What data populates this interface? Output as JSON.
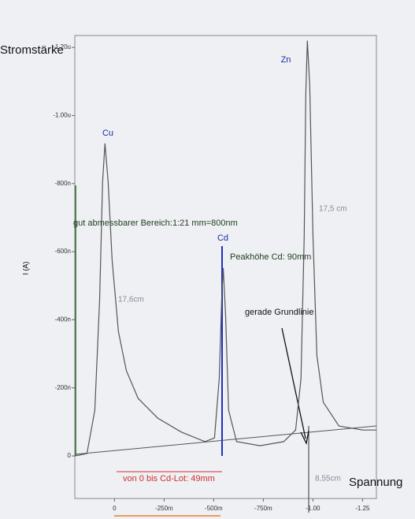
{
  "chart_data": {
    "type": "line",
    "y_label": "I (A)",
    "y_title": "Stromstärke",
    "x_title": "Spannung",
    "x": [
      0.198,
      0.139,
      0.099,
      0.075,
      0.06,
      0.048,
      0.032,
      0.012,
      -0.02,
      -0.06,
      -0.119,
      -0.218,
      -0.337,
      -0.456,
      -0.504,
      -0.528,
      -0.54,
      -0.548,
      -0.56,
      -0.575,
      -0.615,
      -0.734,
      -0.853,
      -0.913,
      -0.94,
      -0.956,
      -0.964,
      -0.972,
      -0.984,
      -1.0,
      -1.02,
      -1.052,
      -1.131,
      -1.25,
      -1.321
    ],
    "color": "#555555",
    "values": [
      0,
      -7,
      -134,
      -458,
      -806,
      -918,
      -806,
      -574,
      -365,
      -250,
      -169,
      -111,
      -70,
      -42,
      -53,
      -227,
      -459,
      -552,
      -412,
      -134,
      -42,
      -30,
      -42,
      -76,
      -227,
      -644,
      -1061,
      -1220,
      -1089,
      -649,
      -295,
      -158,
      -88,
      -76,
      -76
    ],
    "xlim": [
      0.2,
      -1.32
    ],
    "ylim": [
      125,
      -1235
    ],
    "xticks": [
      0,
      {
        "value": -0.25,
        "label": "-250m"
      },
      {
        "value": -0.5,
        "label": "-500m"
      },
      {
        "value": -0.75,
        "label": "-750m"
      },
      {
        "value": -1,
        "label": "-1.00"
      },
      {
        "value": -1.25,
        "label": "-1.25"
      }
    ],
    "yticks": [
      0,
      {
        "value": -200,
        "label": "-200n"
      },
      {
        "value": -400,
        "label": "-400n"
      },
      {
        "value": -600,
        "label": "-600n"
      },
      {
        "value": -800,
        "label": "-800n"
      },
      {
        "value": -1000,
        "label": "-1.00u"
      },
      {
        "value": -1200,
        "label": "-1.20u"
      }
    ],
    "annotations": [
      {
        "text": "Cu",
        "color": "#1a2aa8"
      },
      {
        "text": "Cd",
        "color": "#1a2aa8"
      },
      {
        "text": "Zn",
        "color": "#1a2aa8"
      },
      {
        "text": "gut abmessbarer Bereich:1:21 mm=800nm",
        "color": "#1f3d1f"
      },
      {
        "text": "Peakhöhe Cd: 90mm",
        "color": "#1f3d1f"
      },
      {
        "text": "gerade Grundlinie",
        "color": "#111111"
      },
      {
        "text": "von 0 bis Cd-Lot: 49mm",
        "color": "#d03030"
      },
      {
        "text": "17,5 cm",
        "color": "#8a8a9a"
      },
      {
        "text": "17,6cm",
        "color": "#8a8a9a"
      },
      {
        "text": "8,55cm",
        "color": "#8a8a9a"
      }
    ]
  }
}
